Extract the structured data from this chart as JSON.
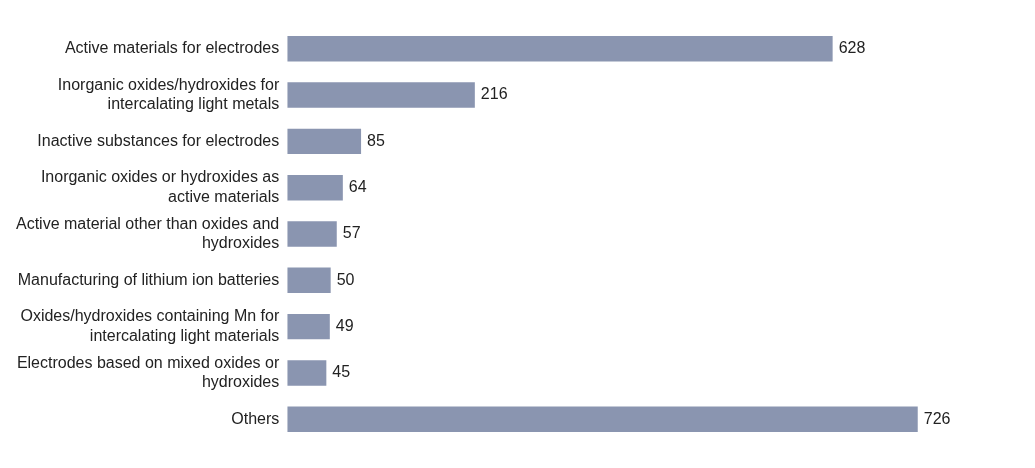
{
  "chart_data": {
    "type": "bar",
    "orientation": "horizontal",
    "categories": [
      "Active materials for electrodes",
      "Inorganic oxides/hydroxides for intercalating light metals",
      "Inactive substances for electrodes",
      "Inorganic oxides or hydroxides as active materials",
      "Active material other than oxides and hydroxides",
      "Manufacturing of lithium ion batteries",
      "Oxides/hydroxides containing Mn for intercalating light materials",
      "Electrodes based on mixed oxides or hydroxides",
      "Others"
    ],
    "values": [
      628,
      216,
      85,
      64,
      57,
      50,
      49,
      45,
      726
    ],
    "color": "#8a95b0",
    "data_labels": true
  }
}
